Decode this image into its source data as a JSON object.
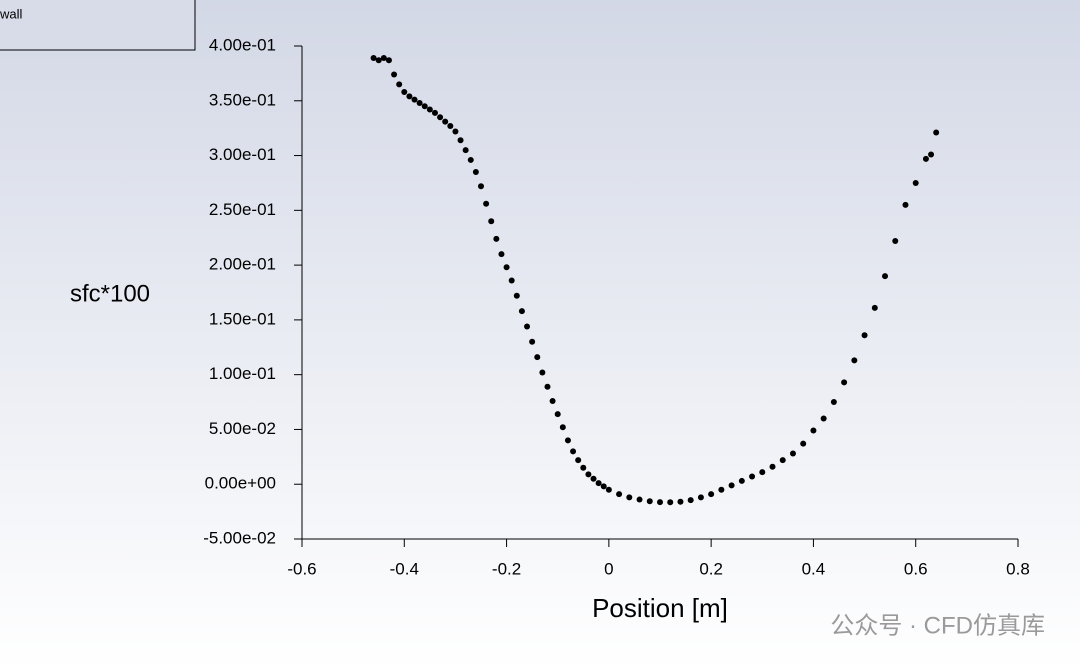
{
  "chart_data": {
    "type": "scatter",
    "xlabel": "Position [m]",
    "ylabel": "sfc*100",
    "watermark": "公众号 · CFD仿真库",
    "xlim": [
      -0.6,
      0.8
    ],
    "xticks": [
      -0.6,
      -0.4,
      -0.2,
      0,
      0.2,
      0.4,
      0.6,
      0.8
    ],
    "ylim": [
      -0.05,
      0.4
    ],
    "yticks": [
      {
        "value": -0.05,
        "label": "-5.00e-02"
      },
      {
        "value": 0,
        "label": "0.00e+00"
      },
      {
        "value": 0.05,
        "label": "5.00e-02"
      },
      {
        "value": 0.1,
        "label": "1.00e-01"
      },
      {
        "value": 0.15,
        "label": "1.50e-01"
      },
      {
        "value": 0.2,
        "label": "2.00e-01"
      },
      {
        "value": 0.25,
        "label": "2.50e-01"
      },
      {
        "value": 0.3,
        "label": "3.00e-01"
      },
      {
        "value": 0.35,
        "label": "3.50e-01"
      },
      {
        "value": 0.4,
        "label": "4.00e-01"
      }
    ],
    "series": [
      {
        "name": "wall",
        "color": "#000000",
        "x": [
          -0.46,
          -0.45,
          -0.44,
          -0.43,
          -0.42,
          -0.41,
          -0.4,
          -0.39,
          -0.38,
          -0.37,
          -0.36,
          -0.35,
          -0.34,
          -0.33,
          -0.32,
          -0.31,
          -0.3,
          -0.29,
          -0.28,
          -0.27,
          -0.26,
          -0.25,
          -0.24,
          -0.23,
          -0.22,
          -0.21,
          -0.2,
          -0.19,
          -0.18,
          -0.17,
          -0.16,
          -0.15,
          -0.14,
          -0.13,
          -0.12,
          -0.11,
          -0.1,
          -0.09,
          -0.08,
          -0.07,
          -0.06,
          -0.05,
          -0.04,
          -0.03,
          -0.02,
          -0.01,
          0,
          0.02,
          0.04,
          0.06,
          0.08,
          0.1,
          0.12,
          0.14,
          0.16,
          0.18,
          0.2,
          0.22,
          0.24,
          0.26,
          0.28,
          0.3,
          0.32,
          0.34,
          0.36,
          0.38,
          0.4,
          0.42,
          0.44,
          0.46,
          0.48,
          0.5,
          0.52,
          0.54,
          0.56,
          0.58,
          0.6,
          0.62,
          0.63,
          0.64
        ],
        "y": [
          0.389,
          0.387,
          0.389,
          0.387,
          0.374,
          0.365,
          0.358,
          0.354,
          0.351,
          0.348,
          0.345,
          0.342,
          0.339,
          0.335,
          0.331,
          0.327,
          0.322,
          0.314,
          0.305,
          0.296,
          0.285,
          0.272,
          0.256,
          0.24,
          0.224,
          0.21,
          0.198,
          0.186,
          0.172,
          0.158,
          0.144,
          0.13,
          0.116,
          0.102,
          0.089,
          0.076,
          0.064,
          0.052,
          0.04,
          0.03,
          0.022,
          0.015,
          0.009,
          0.005,
          0.001,
          -0.002,
          -0.005,
          -0.009,
          -0.012,
          -0.014,
          -0.0155,
          -0.0163,
          -0.0165,
          -0.016,
          -0.0145,
          -0.012,
          -0.009,
          -0.005,
          -0.001,
          0.003,
          0.007,
          0.011,
          0.016,
          0.022,
          0.028,
          0.037,
          0.049,
          0.06,
          0.075,
          0.093,
          0.113,
          0.136,
          0.161,
          0.19,
          0.222,
          0.255,
          0.275,
          0.297,
          0.301,
          0.321
        ]
      }
    ]
  }
}
